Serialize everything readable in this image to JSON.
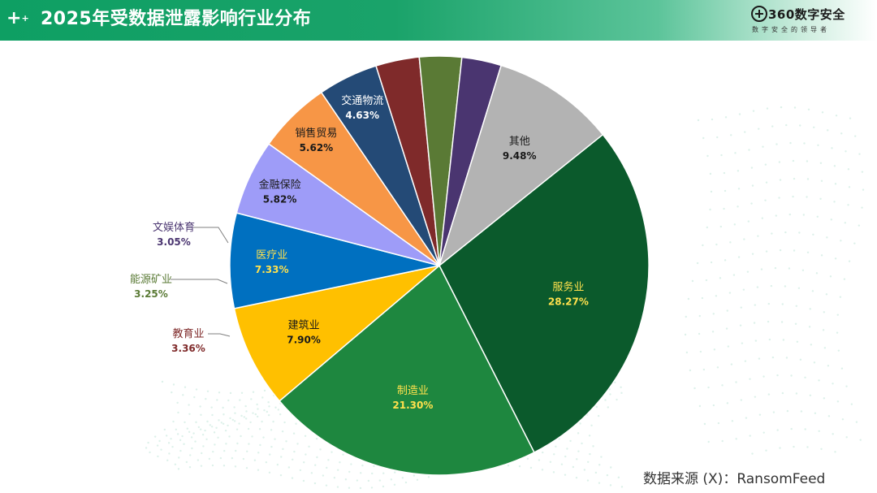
{
  "header": {
    "title": "2025年受数据泄露影响行业分布",
    "plus_mark": "+",
    "plus_small": "+"
  },
  "logo": {
    "name": "360数字安全",
    "slogan": "数字安全的领导者"
  },
  "source": "数据来源 (X)：RansomFeed",
  "colors": {
    "header_green": "#0e9f63",
    "label_light": "#ffe14d"
  },
  "chart_data": {
    "type": "pie",
    "title": "2025年受数据泄露影响行业分布",
    "start_slice": "服务业",
    "direction": "clockwise",
    "slices": [
      {
        "label": "服务业",
        "value": 28.27,
        "display": "28.27%",
        "color": "#0b5a2c"
      },
      {
        "label": "制造业",
        "value": 21.3,
        "display": "21.30%",
        "color": "#1e873f"
      },
      {
        "label": "建筑业",
        "value": 7.9,
        "display": "7.90%",
        "color": "#ffc000"
      },
      {
        "label": "医疗业",
        "value": 7.33,
        "display": "7.33%",
        "color": "#0070c0"
      },
      {
        "label": "金融保险",
        "value": 5.82,
        "display": "5.82%",
        "color": "#9e9cf8"
      },
      {
        "label": "销售贸易",
        "value": 5.62,
        "display": "5.62%",
        "color": "#f79646"
      },
      {
        "label": "交通物流",
        "value": 4.63,
        "display": "4.63%",
        "color": "#244a76"
      },
      {
        "label": "教育业",
        "value": 3.36,
        "display": "3.36%",
        "color": "#7f2a2a"
      },
      {
        "label": "能源矿业",
        "value": 3.25,
        "display": "3.25%",
        "color": "#5a7a35"
      },
      {
        "label": "文娱体育",
        "value": 3.05,
        "display": "3.05%",
        "color": "#4a3570"
      },
      {
        "label": "其他",
        "value": 9.48,
        "display": "9.48%",
        "color": "#b3b3b3"
      }
    ]
  }
}
